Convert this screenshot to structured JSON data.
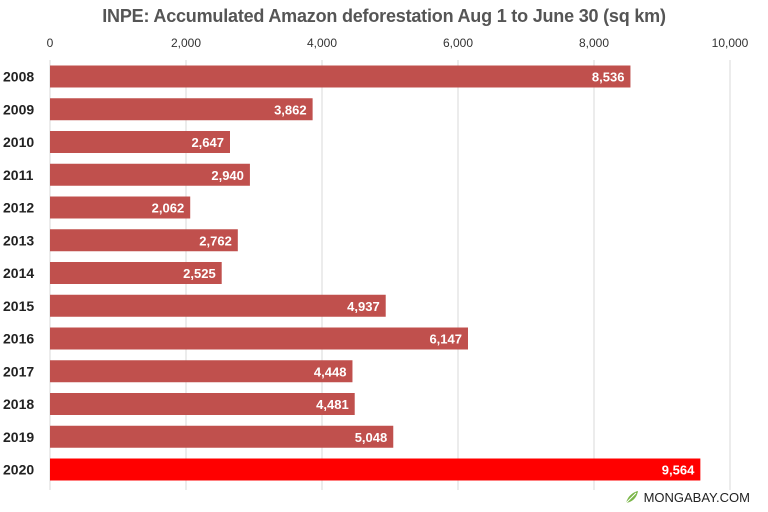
{
  "chart_data": {
    "type": "bar",
    "orientation": "horizontal",
    "title": "INPE: Accumulated Amazon deforestation Aug 1 to June 30 (sq km)",
    "categories": [
      "2008",
      "2009",
      "2010",
      "2011",
      "2012",
      "2013",
      "2014",
      "2015",
      "2016",
      "2017",
      "2018",
      "2019",
      "2020"
    ],
    "values": [
      8536,
      3862,
      2647,
      2940,
      2062,
      2762,
      2525,
      4937,
      6147,
      4448,
      4481,
      5048,
      9564
    ],
    "value_labels": [
      "8,536",
      "3,862",
      "2,647",
      "2,940",
      "2,062",
      "2,762",
      "2,525",
      "4,937",
      "6,147",
      "4,448",
      "4,481",
      "5,048",
      "9,564"
    ],
    "xlim": [
      0,
      10000
    ],
    "xticks": [
      0,
      2000,
      4000,
      6000,
      8000,
      10000
    ],
    "xtick_labels": [
      "0",
      "2,000",
      "4,000",
      "6,000",
      "8,000",
      "10,000"
    ],
    "axis_position": "top",
    "grid": true,
    "colors": {
      "bar": "#c0504d",
      "highlight": "#ff0000",
      "grid": "#d9d9d9"
    },
    "highlight_category": "2020"
  },
  "brand": {
    "text": "MONGABAY.COM",
    "icon": "leaf-icon"
  }
}
